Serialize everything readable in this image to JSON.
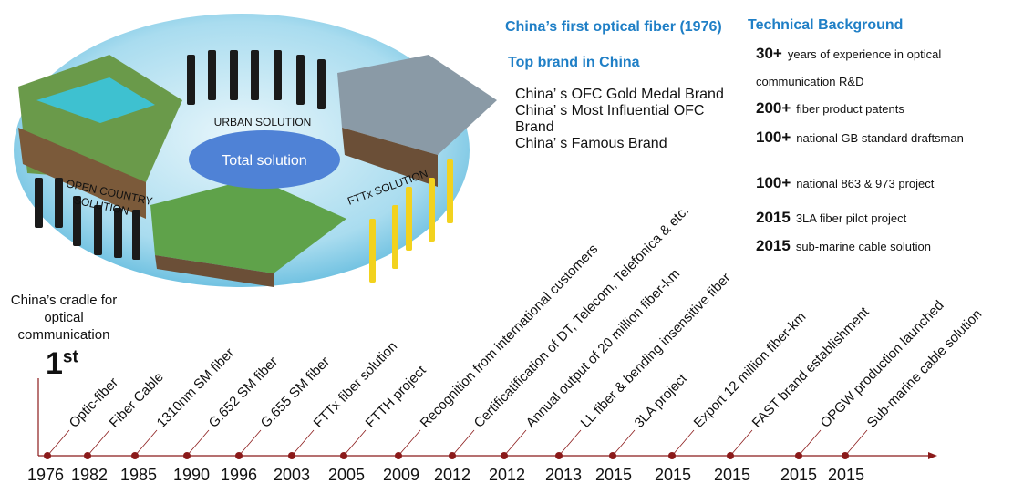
{
  "illustration": {
    "center": "Total solution",
    "urban": "URBAN SOLUTION",
    "open_country": "OPEN COUNTRY SOLUTION",
    "fttx": "FTTx SOLUTION"
  },
  "highlights": {
    "first": "China’s  first optical fiber (1976)",
    "top_brand": {
      "title": "Top brand in China",
      "items": [
        "China’ s OFC Gold Medal Brand",
        "China’ s Most Influential OFC Brand",
        "China’ s Famous Brand"
      ]
    }
  },
  "technical": {
    "title": "Technical Background",
    "items": [
      {
        "lead": "30+",
        "text": "years of experience in optical communication R&D"
      },
      {
        "lead": "200+",
        "text": "fiber product patents"
      },
      {
        "lead": "100+",
        "text": "national GB standard draftsman"
      },
      {
        "lead": "100+",
        "text": "national 863 & 973 project"
      },
      {
        "lead": "2015",
        "text": "3LA fiber pilot project"
      },
      {
        "lead": "2015",
        "text": "sub-marine cable solution"
      }
    ]
  },
  "cradle": {
    "text": "China’s cradle for optical communication",
    "number": "1",
    "suffix": "st"
  },
  "timeline": [
    {
      "year": "1976",
      "label": "Optic-fiber"
    },
    {
      "year": "1982",
      "label": "Fiber Cable"
    },
    {
      "year": "1985",
      "label": "1310nm SM fiber"
    },
    {
      "year": "1990",
      "label": "G.652 SM fiber"
    },
    {
      "year": "1996",
      "label": "G.655 SM fiber"
    },
    {
      "year": "2003",
      "label": "FTTx fiber solution"
    },
    {
      "year": "2005",
      "label": "FTTH project"
    },
    {
      "year": "2009",
      "label": "Recognition from international customers"
    },
    {
      "year": "2012",
      "label": "Certificatification of DT, Telecom, Telefonica & etc."
    },
    {
      "year": "2012",
      "label": "Annual output of 20 million fiber-km"
    },
    {
      "year": "2013",
      "label": "LL fiber & bending insensitive fiber"
    },
    {
      "year": "2015",
      "label": "3LA project"
    },
    {
      "year": "2015",
      "label": "Export 12 million fiber-km"
    },
    {
      "year": "2015",
      "label": "FAST brand establishment"
    },
    {
      "year": "2015",
      "label": "OPGW production launched"
    },
    {
      "year": "2015",
      "label": "Sub-marine cable solution"
    }
  ]
}
